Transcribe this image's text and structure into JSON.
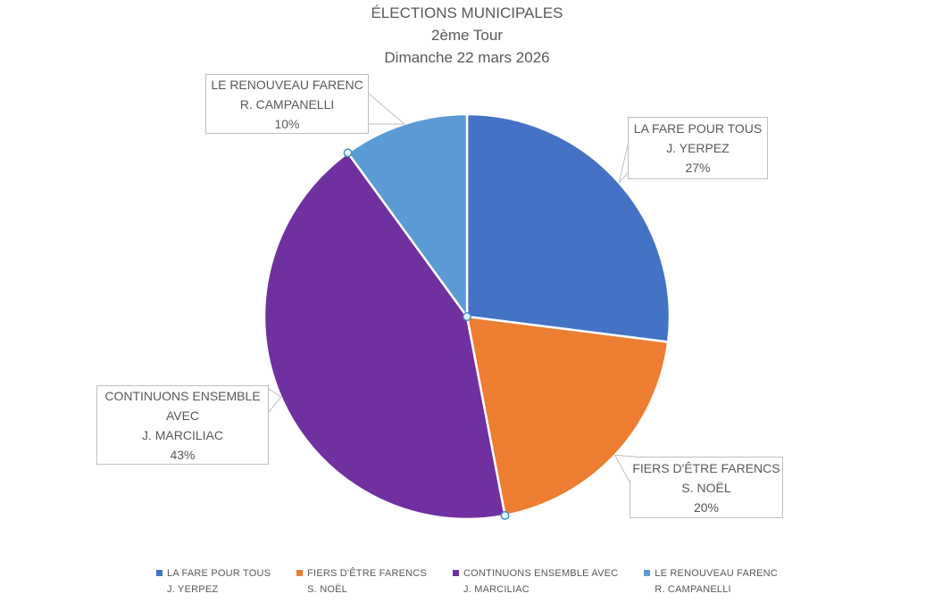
{
  "title": {
    "line1": "ÉLECTIONS MUNICIPALES",
    "line2": "2ème Tour",
    "line3": "Dimanche 22 mars 2026"
  },
  "chart_data": {
    "type": "pie",
    "title": "ÉLECTIONS MUNICIPALES 2ème Tour Dimanche 22 mars 2026",
    "unit": "%",
    "direction": "clockwise",
    "start_angle_deg": 0,
    "legend_position": "bottom",
    "selected_slice": "CONTINUONS ENSEMBLE AVEC J. MARCILIAC",
    "slices": [
      {
        "label": "LA FARE POUR TOUS",
        "candidate": "J. YERPEZ",
        "percent": 27,
        "color": "#4472C4"
      },
      {
        "label": "FIERS D'ÊTRE FARENCS",
        "candidate": "S. NOËL",
        "percent": 20,
        "color": "#ED7D31"
      },
      {
        "label": "CONTINUONS ENSEMBLE AVEC",
        "candidate": "J. MARCILIAC",
        "percent": 43,
        "color": "#7030A0"
      },
      {
        "label": "LE RENOUVEAU FARENC",
        "candidate": "R. CAMPANELLI",
        "percent": 10,
        "color": "#5B9BD5"
      }
    ]
  },
  "callouts": [
    {
      "lines": [
        "LA FARE POUR TOUS",
        "J. YERPEZ",
        "27%"
      ]
    },
    {
      "lines": [
        "FIERS D'ÊTRE FARENCS",
        "S. NOËL",
        "20%"
      ]
    },
    {
      "lines": [
        "CONTINUONS ENSEMBLE",
        "AVEC",
        "J. MARCILIAC",
        "43%"
      ]
    },
    {
      "lines": [
        "LE RENOUVEAU FARENC",
        "R. CAMPANELLI",
        "10%"
      ]
    }
  ],
  "legend": {
    "items": [
      {
        "label": "LA FARE POUR TOUS",
        "candidate": "J. YERPEZ",
        "color": "#4472C4"
      },
      {
        "label": "FIERS D'ÊTRE FARENCS",
        "candidate": "S. NOËL",
        "color": "#ED7D31"
      },
      {
        "label": "CONTINUONS ENSEMBLE AVEC",
        "candidate": "J. MARCILIAC",
        "color": "#7030A0"
      },
      {
        "label": "LE RENOUVEAU FARENC",
        "candidate": "R. CAMPANELLI",
        "color": "#5B9BD5"
      }
    ]
  },
  "ui": {
    "background": "#FFFFFF",
    "text_color": "#595959",
    "border_color": "#BFBFBF",
    "handle_color": "#3E8ECC"
  }
}
